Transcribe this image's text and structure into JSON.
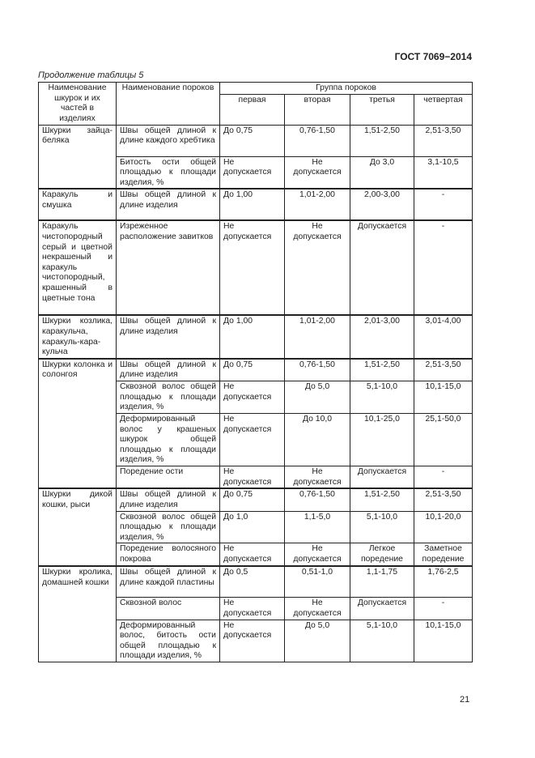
{
  "header": "ГОСТ 7069−2014",
  "caption": "Продолжение таблицы 5",
  "page_number": "21",
  "table": {
    "col_item": "Наименование шкурок и их частей в изделиях",
    "col_defect": "Наименование пороков",
    "col_group": "Группа пороков",
    "groups": [
      "первая",
      "вторая",
      "третья",
      "четвертая"
    ],
    "sections": [
      {
        "item": "Шкурки зайца-беляка",
        "rows": [
          {
            "defect": "Швы общей длиной к длине каждого хребтика",
            "values": [
              "До 0,75",
              "0,76-1,50",
              "1,51-2,50",
              "2,51-3,50"
            ]
          },
          {
            "defect": "Битость ости общей площадью к площади изделия, %",
            "values": [
              "Не допускается",
              "Не допускается",
              "До 3,0",
              "3,1-10,5"
            ]
          }
        ]
      },
      {
        "item": "Каракуль и смушка",
        "rows": [
          {
            "defect": "Швы общей длиной к длине изделия",
            "values": [
              "До 1,00",
              "1,01-2,00",
              "2,00-3,00",
              "-"
            ]
          }
        ]
      },
      {
        "item": "Каракуль чистопородный серый и цветной некрашеный и каракуль чистопородный, крашенный в цветные тона",
        "rows": [
          {
            "defect": "Изреженное расположение завитков",
            "values": [
              "Не допускается",
              "Не допускается",
              "Допускается",
              "-"
            ]
          }
        ]
      },
      {
        "item": "Шкурки козлика, каракульча, каракуль-кара-кульча",
        "rows": [
          {
            "defect": "Швы общей длиной к длине изделия",
            "values": [
              "До 1,00",
              "1,01-2,00",
              "2,01-3,00",
              "3,01-4,00"
            ]
          }
        ]
      },
      {
        "item": "Шкурки колонка и солонгоя",
        "rows": [
          {
            "defect": "Швы общей длиной к длине изделия",
            "values": [
              "До 0,75",
              "0,76-1,50",
              "1,51-2,50",
              "2,51-3,50"
            ]
          },
          {
            "defect": "Сквозной волос общей площадью к площади изделия, %",
            "values": [
              "Не допускается",
              "До 5,0",
              "5,1-10,0",
              "10,1-15,0"
            ]
          },
          {
            "defect": "Деформированный волос у крашеных шкурок общей площадью к площади изделия, %",
            "values": [
              "Не допускается",
              "До 10,0",
              "10,1-25,0",
              "25,1-50,0"
            ]
          },
          {
            "defect": "Поредение ости",
            "values": [
              "Не допускается",
              "Не допускается",
              "Допускается",
              "-"
            ]
          }
        ]
      },
      {
        "item": "Шкурки дикой кошки, рыси",
        "rows": [
          {
            "defect": "Швы общей длиной к длине изделия",
            "values": [
              "До 0,75",
              "0,76-1,50",
              "1,51-2,50",
              "2,51-3,50"
            ]
          },
          {
            "defect": "Сквозной волос общей площадью к площади изделия, %",
            "values": [
              "До 1,0",
              "1,1-5,0",
              "5,1-10,0",
              "10,1-20,0"
            ]
          },
          {
            "defect": "Поредение волосяного покрова",
            "values": [
              "Не допускается",
              "Не допускается",
              "Легкое поредение",
              "Заметное поредение"
            ]
          }
        ]
      },
      {
        "item": "Шкурки кролика, домашней кошки",
        "rows": [
          {
            "defect": "Швы общей длиной к длине каждой пластины",
            "values": [
              "До 0,5",
              "0,51-1,0",
              "1,1-1,75",
              "1,76-2,5"
            ]
          },
          {
            "defect": "Сквозной волос",
            "values": [
              "Не допускается",
              "Не допускается",
              "Допускается",
              "-"
            ]
          },
          {
            "defect": "Деформированный волос, битость ости общей площадью к площади изделия, %",
            "values": [
              "Не допускается",
              "До 5,0",
              "5,1-10,0",
              "10,1-15,0"
            ]
          }
        ]
      }
    ]
  }
}
